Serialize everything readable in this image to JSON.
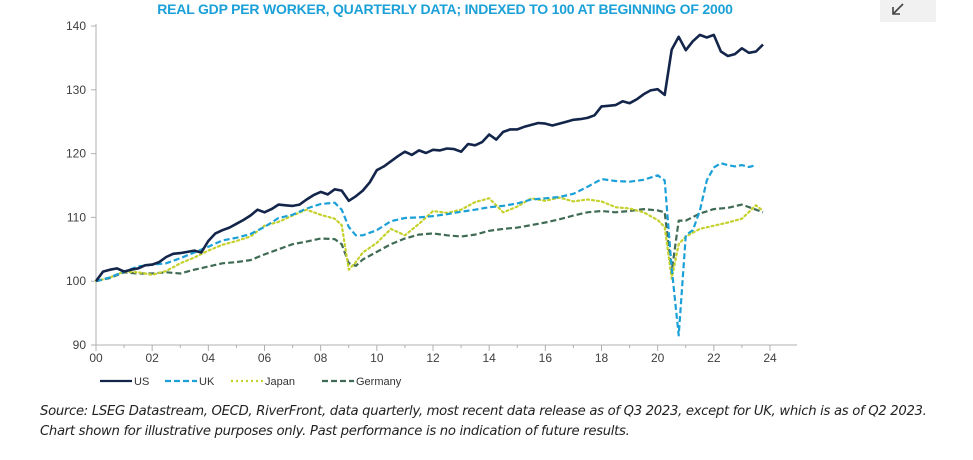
{
  "page": {
    "export_icon": "arrow-down-left-icon",
    "source_note": "Source: LSEG Datastream, OECD, RiverFront, data quarterly, most recent data release as of Q3 2023, except for UK, which is as of Q2 2023. Chart shown for illustrative purposes only. Past performance is no indication of future results."
  },
  "chart_data": {
    "type": "line",
    "title": "REAL GDP PER WORKER, QUARTERLY DATA; INDEXED TO 100 AT BEGINNING OF 2000",
    "xlabel": "",
    "ylabel": "",
    "xlim": [
      2000,
      2024.6
    ],
    "ylim": [
      90,
      140
    ],
    "x_ticks": [
      2000,
      2002,
      2004,
      2006,
      2008,
      2010,
      2012,
      2014,
      2016,
      2018,
      2020,
      2022,
      2024
    ],
    "x_tick_labels": [
      "00",
      "02",
      "04",
      "06",
      "08",
      "10",
      "12",
      "14",
      "16",
      "18",
      "20",
      "22",
      "24"
    ],
    "y_ticks": [
      90,
      100,
      110,
      120,
      130,
      140
    ],
    "y_tick_labels": [
      "90",
      "100",
      "110",
      "120",
      "130",
      "140"
    ],
    "grid": false,
    "legend_position": "bottom-left",
    "colors": {
      "US": "#13254a",
      "UK": "#1ba0d8",
      "Japan": "#c5d12c",
      "Germany": "#3f6b55",
      "axis": "#b0b0b0",
      "title": "#1ba0d8"
    },
    "series": [
      {
        "name": "US",
        "style": "solid",
        "points": [
          [
            2000.0,
            100.0
          ],
          [
            2000.25,
            101.5
          ],
          [
            2000.5,
            101.8
          ],
          [
            2000.75,
            102.0
          ],
          [
            2001.0,
            101.5
          ],
          [
            2001.25,
            101.8
          ],
          [
            2001.5,
            102.0
          ],
          [
            2001.75,
            102.5
          ],
          [
            2002.0,
            102.6
          ],
          [
            2002.25,
            103.0
          ],
          [
            2002.5,
            103.8
          ],
          [
            2002.75,
            104.3
          ],
          [
            2003.0,
            104.4
          ],
          [
            2003.25,
            104.6
          ],
          [
            2003.5,
            104.8
          ],
          [
            2003.75,
            104.5
          ],
          [
            2004.0,
            106.3
          ],
          [
            2004.25,
            107.5
          ],
          [
            2004.5,
            108.0
          ],
          [
            2004.75,
            108.4
          ],
          [
            2005.0,
            109.0
          ],
          [
            2005.25,
            109.6
          ],
          [
            2005.5,
            110.3
          ],
          [
            2005.75,
            111.2
          ],
          [
            2006.0,
            110.8
          ],
          [
            2006.25,
            111.3
          ],
          [
            2006.5,
            112.0
          ],
          [
            2006.75,
            111.9
          ],
          [
            2007.0,
            111.8
          ],
          [
            2007.25,
            112.0
          ],
          [
            2007.5,
            112.8
          ],
          [
            2007.75,
            113.5
          ],
          [
            2008.0,
            114.0
          ],
          [
            2008.25,
            113.6
          ],
          [
            2008.5,
            114.4
          ],
          [
            2008.75,
            114.2
          ],
          [
            2009.0,
            112.6
          ],
          [
            2009.25,
            113.3
          ],
          [
            2009.5,
            114.2
          ],
          [
            2009.75,
            115.5
          ],
          [
            2010.0,
            117.4
          ],
          [
            2010.25,
            118.0
          ],
          [
            2010.5,
            118.8
          ],
          [
            2010.75,
            119.6
          ],
          [
            2011.0,
            120.3
          ],
          [
            2011.25,
            119.8
          ],
          [
            2011.5,
            120.5
          ],
          [
            2011.75,
            120.1
          ],
          [
            2012.0,
            120.6
          ],
          [
            2012.25,
            120.5
          ],
          [
            2012.5,
            120.8
          ],
          [
            2012.75,
            120.7
          ],
          [
            2013.0,
            120.3
          ],
          [
            2013.25,
            121.5
          ],
          [
            2013.5,
            121.3
          ],
          [
            2013.75,
            121.8
          ],
          [
            2014.0,
            123.0
          ],
          [
            2014.25,
            122.2
          ],
          [
            2014.5,
            123.4
          ],
          [
            2014.75,
            123.8
          ],
          [
            2015.0,
            123.8
          ],
          [
            2015.25,
            124.2
          ],
          [
            2015.5,
            124.5
          ],
          [
            2015.75,
            124.8
          ],
          [
            2016.0,
            124.7
          ],
          [
            2016.25,
            124.4
          ],
          [
            2016.5,
            124.7
          ],
          [
            2016.75,
            125.0
          ],
          [
            2017.0,
            125.3
          ],
          [
            2017.25,
            125.4
          ],
          [
            2017.5,
            125.6
          ],
          [
            2017.75,
            126.0
          ],
          [
            2018.0,
            127.4
          ],
          [
            2018.25,
            127.5
          ],
          [
            2018.5,
            127.6
          ],
          [
            2018.75,
            128.2
          ],
          [
            2019.0,
            127.9
          ],
          [
            2019.25,
            128.5
          ],
          [
            2019.5,
            129.3
          ],
          [
            2019.75,
            129.9
          ],
          [
            2020.0,
            130.1
          ],
          [
            2020.25,
            129.2
          ],
          [
            2020.5,
            136.3
          ],
          [
            2020.75,
            138.3
          ],
          [
            2021.0,
            136.2
          ],
          [
            2021.25,
            137.6
          ],
          [
            2021.5,
            138.6
          ],
          [
            2021.75,
            138.2
          ],
          [
            2022.0,
            138.6
          ],
          [
            2022.25,
            136.0
          ],
          [
            2022.5,
            135.3
          ],
          [
            2022.75,
            135.6
          ],
          [
            2023.0,
            136.5
          ],
          [
            2023.25,
            135.8
          ],
          [
            2023.5,
            136.0
          ],
          [
            2023.75,
            137.1
          ]
        ]
      },
      {
        "name": "UK",
        "style": "dashed",
        "points": [
          [
            2000.0,
            100.0
          ],
          [
            2000.5,
            100.6
          ],
          [
            2001.0,
            101.5
          ],
          [
            2001.5,
            102.3
          ],
          [
            2002.0,
            102.6
          ],
          [
            2002.5,
            102.8
          ],
          [
            2003.0,
            103.6
          ],
          [
            2003.5,
            104.5
          ],
          [
            2004.0,
            105.4
          ],
          [
            2004.5,
            106.4
          ],
          [
            2005.0,
            106.8
          ],
          [
            2005.5,
            107.4
          ],
          [
            2006.0,
            108.5
          ],
          [
            2006.5,
            109.9
          ],
          [
            2007.0,
            110.4
          ],
          [
            2007.5,
            111.4
          ],
          [
            2008.0,
            112.1
          ],
          [
            2008.5,
            112.3
          ],
          [
            2008.75,
            111.2
          ],
          [
            2009.0,
            108.5
          ],
          [
            2009.25,
            107.2
          ],
          [
            2009.5,
            107.2
          ],
          [
            2010.0,
            108.0
          ],
          [
            2010.5,
            109.4
          ],
          [
            2011.0,
            109.9
          ],
          [
            2011.5,
            110.0
          ],
          [
            2012.0,
            110.2
          ],
          [
            2012.5,
            110.5
          ],
          [
            2013.0,
            110.9
          ],
          [
            2013.5,
            111.2
          ],
          [
            2014.0,
            111.6
          ],
          [
            2014.5,
            111.8
          ],
          [
            2015.0,
            112.2
          ],
          [
            2015.5,
            112.8
          ],
          [
            2016.0,
            113.0
          ],
          [
            2016.5,
            113.2
          ],
          [
            2017.0,
            113.7
          ],
          [
            2017.5,
            114.8
          ],
          [
            2018.0,
            116.0
          ],
          [
            2018.5,
            115.7
          ],
          [
            2019.0,
            115.6
          ],
          [
            2019.5,
            115.9
          ],
          [
            2020.0,
            116.6
          ],
          [
            2020.25,
            115.8
          ],
          [
            2020.5,
            102.0
          ],
          [
            2020.75,
            91.5
          ],
          [
            2021.0,
            107.2
          ],
          [
            2021.25,
            108.0
          ],
          [
            2021.5,
            111.0
          ],
          [
            2021.75,
            115.8
          ],
          [
            2022.0,
            117.8
          ],
          [
            2022.25,
            118.5
          ],
          [
            2022.5,
            118.2
          ],
          [
            2022.75,
            118.0
          ],
          [
            2023.0,
            118.2
          ],
          [
            2023.25,
            117.9
          ],
          [
            2023.5,
            118.2
          ]
        ]
      },
      {
        "name": "Japan",
        "style": "dotted",
        "points": [
          [
            2000.0,
            100.0
          ],
          [
            2000.5,
            100.6
          ],
          [
            2001.0,
            101.5
          ],
          [
            2001.5,
            101.4
          ],
          [
            2002.0,
            101.0
          ],
          [
            2002.5,
            101.6
          ],
          [
            2003.0,
            102.8
          ],
          [
            2003.5,
            103.7
          ],
          [
            2004.0,
            104.8
          ],
          [
            2004.5,
            105.7
          ],
          [
            2005.0,
            106.3
          ],
          [
            2005.5,
            107.0
          ],
          [
            2006.0,
            108.7
          ],
          [
            2006.5,
            109.3
          ],
          [
            2007.0,
            110.3
          ],
          [
            2007.5,
            111.2
          ],
          [
            2008.0,
            110.4
          ],
          [
            2008.5,
            109.8
          ],
          [
            2008.75,
            108.8
          ],
          [
            2009.0,
            101.8
          ],
          [
            2009.25,
            103.0
          ],
          [
            2009.5,
            104.5
          ],
          [
            2010.0,
            106.0
          ],
          [
            2010.5,
            108.2
          ],
          [
            2011.0,
            107.2
          ],
          [
            2011.5,
            109.0
          ],
          [
            2012.0,
            111.0
          ],
          [
            2012.5,
            110.7
          ],
          [
            2013.0,
            111.2
          ],
          [
            2013.5,
            112.4
          ],
          [
            2014.0,
            113.0
          ],
          [
            2014.5,
            110.8
          ],
          [
            2015.0,
            111.7
          ],
          [
            2015.5,
            113.0
          ],
          [
            2016.0,
            112.6
          ],
          [
            2016.5,
            113.1
          ],
          [
            2017.0,
            112.5
          ],
          [
            2017.5,
            112.8
          ],
          [
            2018.0,
            112.5
          ],
          [
            2018.5,
            111.6
          ],
          [
            2019.0,
            111.4
          ],
          [
            2019.5,
            110.8
          ],
          [
            2020.0,
            109.6
          ],
          [
            2020.25,
            108.5
          ],
          [
            2020.5,
            100.4
          ],
          [
            2020.75,
            105.8
          ],
          [
            2021.0,
            107.0
          ],
          [
            2021.5,
            108.2
          ],
          [
            2022.0,
            108.7
          ],
          [
            2022.5,
            109.2
          ],
          [
            2023.0,
            109.8
          ],
          [
            2023.5,
            111.9
          ],
          [
            2023.75,
            111.0
          ]
        ]
      },
      {
        "name": "Germany",
        "style": "dashed",
        "points": [
          [
            2000.0,
            100.0
          ],
          [
            2000.5,
            100.5
          ],
          [
            2001.0,
            101.4
          ],
          [
            2001.5,
            101.2
          ],
          [
            2002.0,
            101.2
          ],
          [
            2002.5,
            101.4
          ],
          [
            2003.0,
            101.2
          ],
          [
            2003.5,
            101.8
          ],
          [
            2004.0,
            102.3
          ],
          [
            2004.5,
            102.8
          ],
          [
            2005.0,
            103.0
          ],
          [
            2005.5,
            103.3
          ],
          [
            2006.0,
            104.2
          ],
          [
            2006.5,
            105.0
          ],
          [
            2007.0,
            105.8
          ],
          [
            2007.5,
            106.2
          ],
          [
            2008.0,
            106.7
          ],
          [
            2008.5,
            106.6
          ],
          [
            2008.75,
            105.8
          ],
          [
            2009.0,
            102.8
          ],
          [
            2009.25,
            102.4
          ],
          [
            2009.5,
            103.4
          ],
          [
            2010.0,
            104.6
          ],
          [
            2010.5,
            105.8
          ],
          [
            2011.0,
            106.7
          ],
          [
            2011.5,
            107.3
          ],
          [
            2012.0,
            107.5
          ],
          [
            2012.5,
            107.2
          ],
          [
            2013.0,
            107.0
          ],
          [
            2013.5,
            107.3
          ],
          [
            2014.0,
            107.9
          ],
          [
            2014.5,
            108.2
          ],
          [
            2015.0,
            108.4
          ],
          [
            2015.5,
            108.8
          ],
          [
            2016.0,
            109.2
          ],
          [
            2016.5,
            109.7
          ],
          [
            2017.0,
            110.3
          ],
          [
            2017.5,
            110.8
          ],
          [
            2018.0,
            111.0
          ],
          [
            2018.5,
            110.8
          ],
          [
            2019.0,
            111.0
          ],
          [
            2019.5,
            111.3
          ],
          [
            2020.0,
            111.1
          ],
          [
            2020.25,
            110.8
          ],
          [
            2020.5,
            101.5
          ],
          [
            2020.75,
            109.5
          ],
          [
            2021.0,
            109.5
          ],
          [
            2021.5,
            110.6
          ],
          [
            2022.0,
            111.3
          ],
          [
            2022.5,
            111.5
          ],
          [
            2023.0,
            112.0
          ],
          [
            2023.5,
            111.2
          ],
          [
            2023.75,
            110.8
          ]
        ]
      }
    ]
  }
}
